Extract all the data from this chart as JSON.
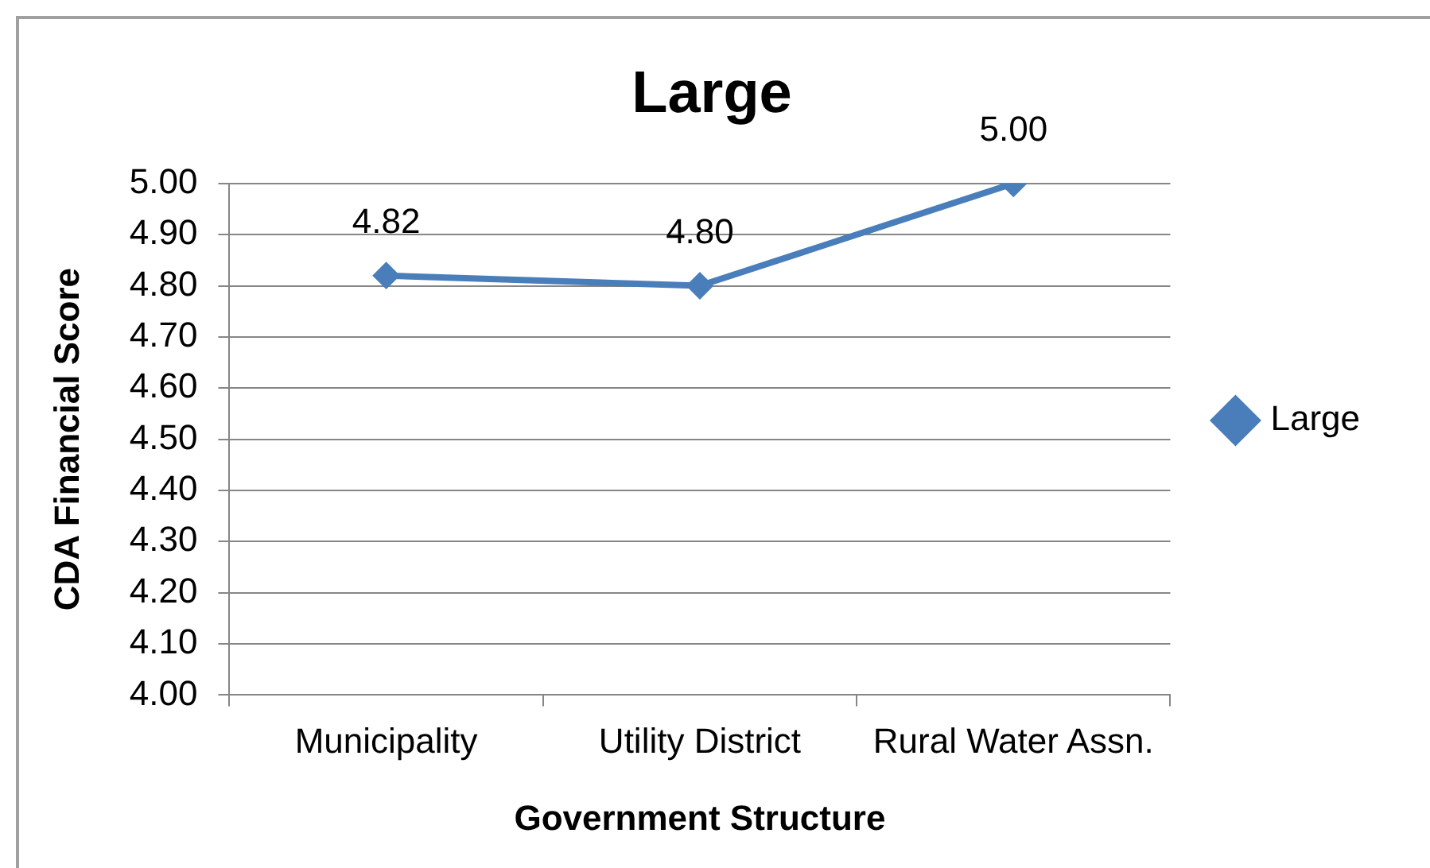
{
  "chart_data": {
    "type": "line",
    "title": "Large",
    "xlabel": "Government Structure",
    "ylabel": "CDA Financial Score",
    "categories": [
      "Municipality",
      "Utility District",
      "Rural Water Assn."
    ],
    "series": [
      {
        "name": "Large",
        "color": "#4a7ebb",
        "values": [
          4.82,
          4.8,
          5.0
        ],
        "value_labels": [
          "4.82",
          "4.80",
          "5.00"
        ]
      }
    ],
    "ylim": [
      4.0,
      5.0
    ],
    "yticks": [
      {
        "value": 4.0,
        "label": "4.00"
      },
      {
        "value": 4.1,
        "label": "4.10"
      },
      {
        "value": 4.2,
        "label": "4.20"
      },
      {
        "value": 4.3,
        "label": "4.30"
      },
      {
        "value": 4.4,
        "label": "4.40"
      },
      {
        "value": 4.5,
        "label": "4.50"
      },
      {
        "value": 4.6,
        "label": "4.60"
      },
      {
        "value": 4.7,
        "label": "4.70"
      },
      {
        "value": 4.8,
        "label": "4.80"
      },
      {
        "value": 4.9,
        "label": "4.90"
      },
      {
        "value": 5.0,
        "label": "5.00"
      }
    ],
    "grid": "y",
    "legend": "right",
    "marker": "diamond",
    "line_style": "solid"
  }
}
